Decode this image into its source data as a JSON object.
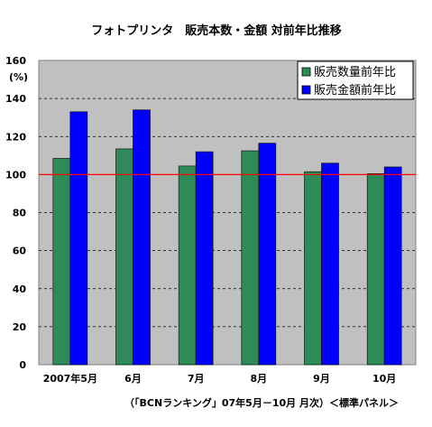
{
  "chart_data": {
    "type": "bar",
    "title": "フォトプリンタ　販売本数・金額 対前年比推移",
    "ylabel": "(%)",
    "xlabel": "",
    "categories": [
      "2007年5月",
      "6月",
      "7月",
      "8月",
      "9月",
      "10月"
    ],
    "series": [
      {
        "name": "販売数量前年比",
        "color": "#2e8b57",
        "values": [
          108.5,
          113.5,
          104.5,
          112.5,
          101.5,
          100.5
        ]
      },
      {
        "name": "販売金額前年比",
        "color": "#0000ff",
        "values": [
          133,
          134,
          112,
          116.5,
          106,
          104
        ]
      }
    ],
    "ylim": [
      0,
      160
    ],
    "yticks": [
      0,
      20,
      40,
      60,
      80,
      100,
      120,
      140,
      160
    ],
    "grid": true,
    "plot_background": "#c0c0c0",
    "reference_line": {
      "value": 100,
      "color": "#ff0000"
    },
    "legend_position": "top-right",
    "source": "（「BCNランキング」07年5月－10月 月次）＜標準パネル＞"
  }
}
